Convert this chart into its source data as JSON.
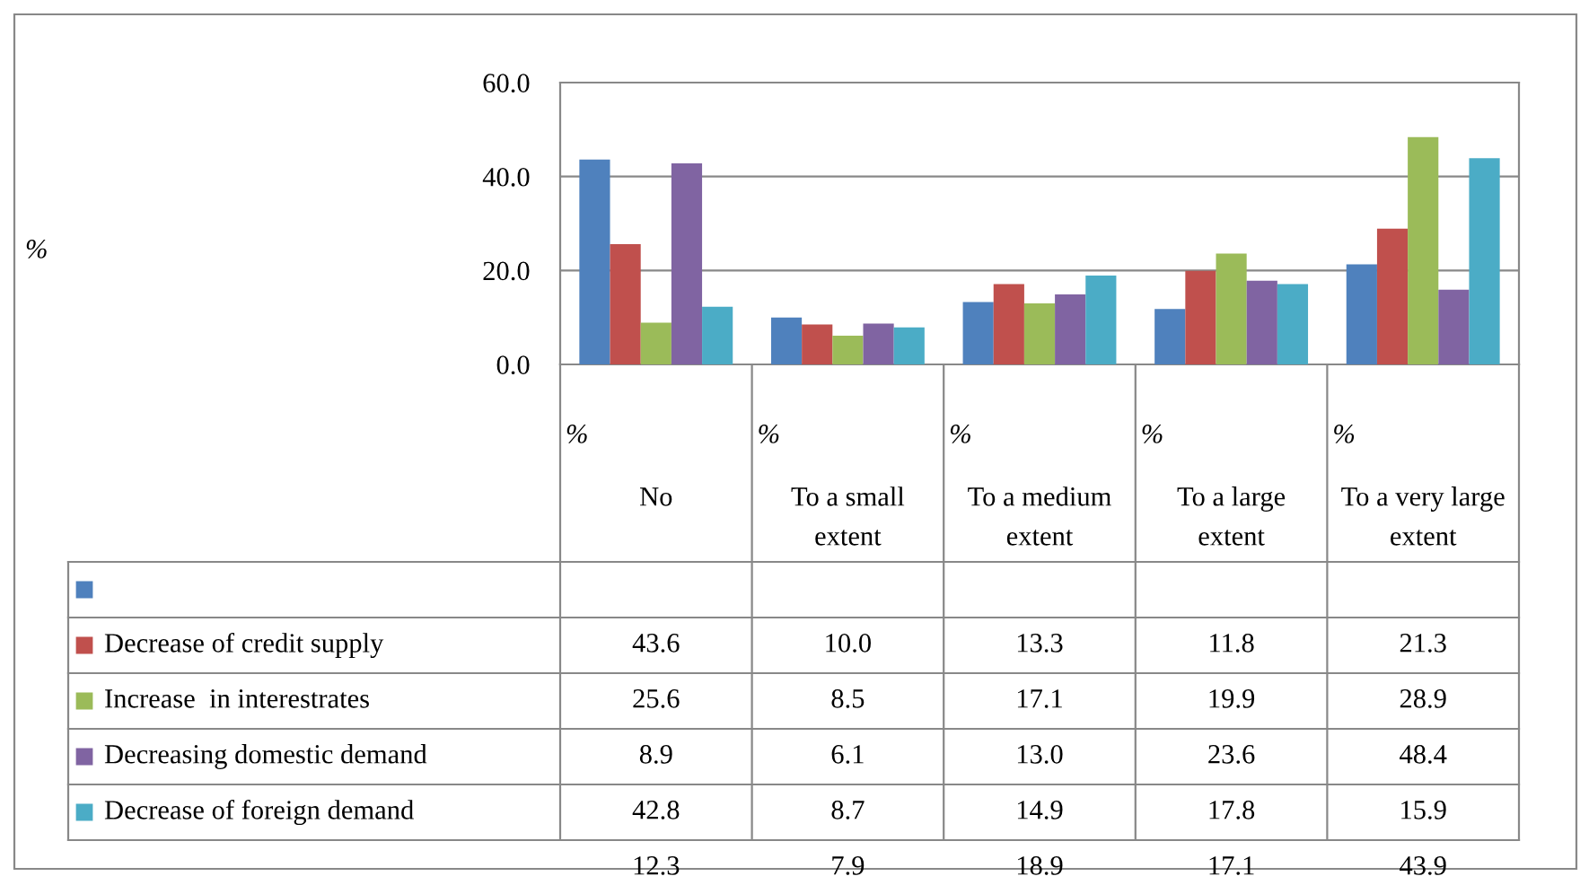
{
  "chart_data": {
    "type": "bar",
    "categories": [
      "No",
      "To a small extent",
      "To a medium extent",
      "To a large extent",
      "To a very large extent"
    ],
    "series": [
      {
        "color": "#4f81bd",
        "values": [
          43.6,
          10.0,
          13.3,
          11.8,
          21.3
        ],
        "value_labels": [
          "43.6",
          "10.0",
          "13.3",
          "11.8",
          "21.3"
        ]
      },
      {
        "name": "Decrease of credit supply",
        "color": "#c0504d",
        "values": [
          25.6,
          8.5,
          17.1,
          19.9,
          28.9
        ],
        "value_labels": [
          "25.6",
          "8.5",
          "17.1",
          "19.9",
          "28.9"
        ]
      },
      {
        "name": "Increase  in interestrates",
        "color": "#9bbb59",
        "values": [
          8.9,
          6.1,
          13.0,
          23.6,
          48.4
        ],
        "value_labels": [
          "8.9",
          "6.1",
          "13.0",
          "23.6",
          "48.4"
        ]
      },
      {
        "name": "Decreasing domestic demand",
        "color": "#8064a2",
        "values": [
          42.8,
          8.7,
          14.9,
          17.8,
          15.9
        ],
        "value_labels": [
          "42.8",
          "8.7",
          "14.9",
          "17.8",
          "15.9"
        ]
      },
      {
        "name": "Decrease of foreign demand",
        "color": "#4bacc6",
        "values": [
          12.3,
          7.9,
          18.9,
          17.1,
          43.9
        ],
        "value_labels": [
          "12.3",
          "7.9",
          "18.9",
          "17.1",
          "43.9"
        ]
      }
    ],
    "annotations": [
      "%",
      "%",
      "%",
      "%",
      "%",
      "%"
    ],
    "ylim": [
      0,
      60
    ],
    "yticks": [
      {
        "value": 0,
        "label": "0.0"
      },
      {
        "value": 20,
        "label": "20.0"
      },
      {
        "value": 40,
        "label": "40.0"
      },
      {
        "value": 60,
        "label": "60.0"
      }
    ],
    "grid": "y",
    "legend": "bottom"
  }
}
